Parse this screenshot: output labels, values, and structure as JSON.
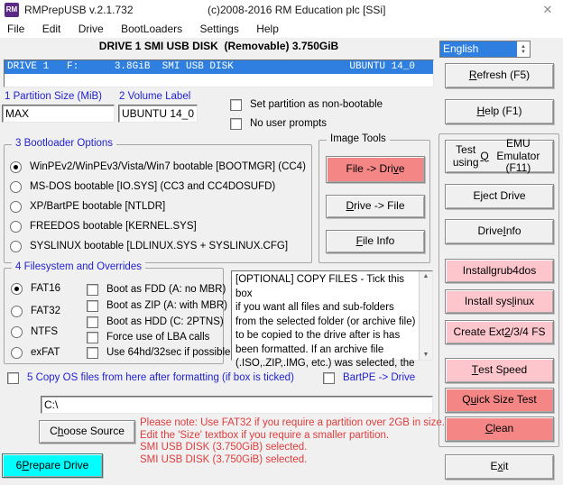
{
  "window": {
    "icon_text": "RM",
    "title": "RMPrepUSB v.2.1.732",
    "copyright": "(c)2008-2016 RM Education plc [SSi]",
    "close_glyph": "✕"
  },
  "menu": {
    "items": [
      "File",
      "Edit",
      "Drive",
      "BootLoaders",
      "Settings",
      "Help"
    ]
  },
  "header": {
    "drive_summary": "DRIVE 1 SMI USB DISK  (Removable) 3.750GiB"
  },
  "language": {
    "selected": "English"
  },
  "drive_list": {
    "row_left": "DRIVE 1   F:      3.8GiB  SMI USB DISK",
    "row_right": "UBUNTU 14_0"
  },
  "partition": {
    "label": "1 Partition Size (MiB)",
    "value": "MAX"
  },
  "volume": {
    "label": "2 Volume Label",
    "value": "UBUNTU 14_0"
  },
  "top_checks": [
    {
      "label": "Set partition as non-bootable",
      "checked": false
    },
    {
      "label": "No user prompts",
      "checked": false
    }
  ],
  "bootloader": {
    "title": "3 Bootloader Options",
    "options": [
      {
        "label": "WinPEv2/WinPEv3/Vista/Win7 bootable [BOOTMGR] (CC4)",
        "selected": true
      },
      {
        "label": "MS-DOS bootable [IO.SYS]    (CC3 and CC4DOSUFD)",
        "selected": false
      },
      {
        "label": "XP/BartPE bootable [NTLDR]",
        "selected": false
      },
      {
        "label": "FREEDOS bootable [KERNEL.SYS]",
        "selected": false
      },
      {
        "label": "SYSLINUX bootable [LDLINUX.SYS + SYSLINUX.CFG]",
        "selected": false
      }
    ]
  },
  "image_tools": {
    "title": "Image Tools",
    "buttons": [
      {
        "label": "File -> Dri&ve",
        "tone": "salmon"
      },
      {
        "label": "&Drive -> File",
        "tone": "plain"
      },
      {
        "label": "&File Info",
        "tone": "plain"
      }
    ]
  },
  "filesystem": {
    "title": "4 Filesystem and Overrides",
    "options": [
      {
        "label": "FAT16",
        "selected": true
      },
      {
        "label": "FAT32",
        "selected": false
      },
      {
        "label": "NTFS",
        "selected": false
      },
      {
        "label": "exFAT",
        "selected": false
      }
    ],
    "overrides": [
      {
        "label": "Boot as FDD (A: no MBR)",
        "checked": false
      },
      {
        "label": "Boot as ZIP (A: with MBR)",
        "checked": false
      },
      {
        "label": "Boot as HDD (C: 2PTNS)",
        "checked": false
      },
      {
        "label": "Force use of LBA calls",
        "checked": false
      },
      {
        "label": "Use 64hd/32sec if possible",
        "checked": false
      }
    ]
  },
  "info_box": {
    "text": "[OPTIONAL] COPY FILES - Tick this box\nif you want all files and sub-folders\nfrom the selected folder (or archive file)\nto be copied to the drive after is has\nbeen formatted. If an archive file\n(.ISO,.ZIP,.IMG, etc.) was selected, the",
    "scroll_up_glyph": "▲",
    "scroll_down_glyph": "▼"
  },
  "copy_row": {
    "label": "5 Copy OS files from here after formatting (if box is ticked)",
    "checked": false
  },
  "bartpe": {
    "label": "BartPE -> Drive",
    "checked": false
  },
  "source": {
    "path": "C:\\",
    "choose_label": "C&hoose Source"
  },
  "notes": {
    "lines": [
      "Please note: Use FAT32 if you require a partition over 2GB in size.",
      "Edit the 'Size' textbox if you require a smaller partition.",
      "SMI USB DISK (3.750GiB) selected.",
      "SMI USB DISK (3.750GiB) selected."
    ]
  },
  "prepare": {
    "label": "6 &Prepare Drive",
    "tone": "cyan"
  },
  "right_panel": {
    "refresh": {
      "label": "&Refresh (F5)",
      "tone": "plain"
    },
    "help": {
      "label": "&Help (F1)",
      "tone": "plain"
    },
    "tools": [
      {
        "label": "Test using &QEMU Emulator (F11)",
        "tone": "plain"
      },
      {
        "label": "E&ject Drive",
        "tone": "plain"
      },
      {
        "label": "Drive &Info",
        "tone": "plain"
      },
      {
        "label": "Install &grub4dos",
        "tone": "pink"
      },
      {
        "label": "Install sys&linux",
        "tone": "pink"
      },
      {
        "label": "Create Ext&2/3/4 FS",
        "tone": "pink"
      },
      {
        "label": "&Test Speed",
        "tone": "pink"
      },
      {
        "label": "Q&uick Size Test",
        "tone": "salmon"
      },
      {
        "label": "&Clean",
        "tone": "salmon"
      }
    ],
    "exit": {
      "label": "E&xit",
      "tone": "plain"
    }
  },
  "colors": {
    "titlebar_icon_purple": "#5b2a86",
    "selection_blue": "#2e7fe0",
    "label_blue": "#1f1fd0",
    "note_red": "#e03c3c",
    "salmon": "#f58686",
    "pink": "#fdc6cd",
    "cyan": "#00ffff",
    "window_bg": "#f0f0f0"
  }
}
